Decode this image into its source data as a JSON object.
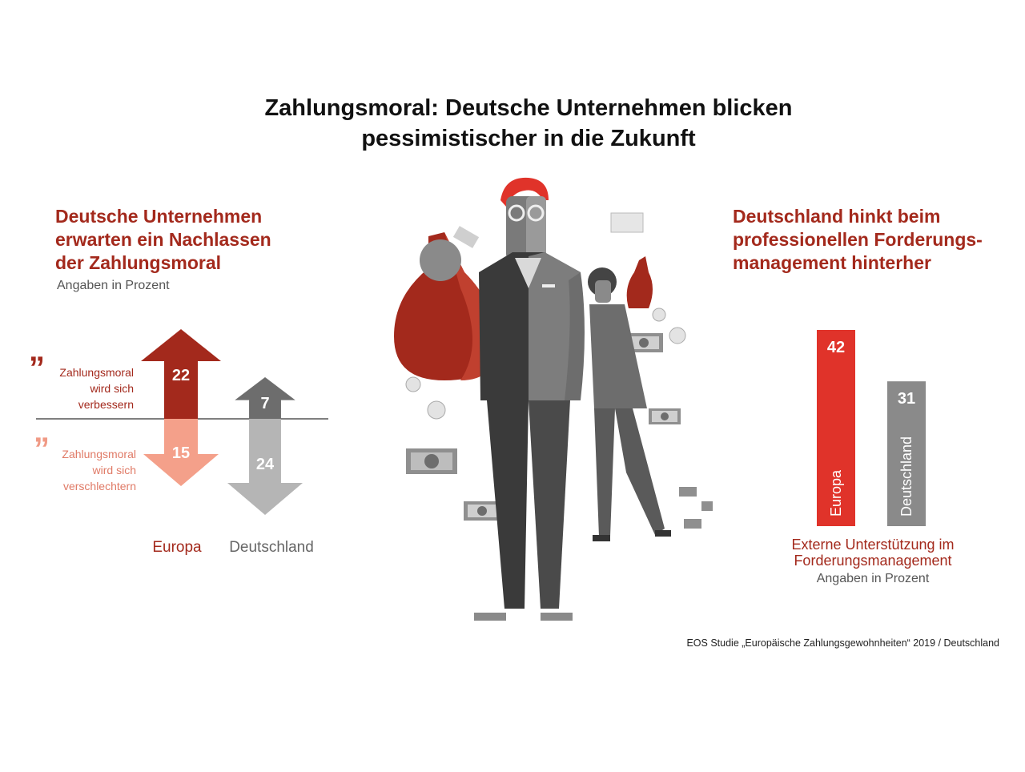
{
  "title_line1": "Zahlungsmoral: Deutsche Unternehmen blicken",
  "title_line2": "pessimistischer in die Zukunft",
  "left": {
    "heading_line1": "Deutsche Unternehmen",
    "heading_line2": "erwarten ein Nachlassen",
    "heading_line3": "der Zahlungsmoral",
    "unit": "Angaben in Prozent",
    "label_up_line1": "Zahlungsmoral",
    "label_up_line2": "wird sich",
    "label_up_line3": "verbessern",
    "label_down_line1": "Zahlungsmoral",
    "label_down_line2": "wird sich",
    "label_down_line3": "verschlechtern",
    "quote_glyph": "”",
    "quote_glyph_down": "”"
  },
  "right": {
    "heading_line1": "Deutschland hinkt beim",
    "heading_line2": "professionellen Forderungs-",
    "heading_line3": "management hinterher",
    "caption_line1": "Externe Unterstützung im",
    "caption_line2": "Forderungsmanagement",
    "unit": "Angaben in Prozent"
  },
  "source": "EOS Studie „Europäische Zahlungsgewohnheiten“  2019 / Deutschland",
  "colors": {
    "europa_up": "#a3291c",
    "europa_down": "#f4a08a",
    "deutschland_up": "#6d6d6d",
    "deutschland_down": "#b5b5b5",
    "bar_europa": "#e0332a",
    "bar_deutschland": "#8a8a8a"
  },
  "illustration": "businessman-with-money-bags-icon",
  "chart_data": [
    {
      "type": "bar",
      "title": "Deutsche Unternehmen erwarten ein Nachlassen der Zahlungsmoral",
      "categories": [
        "Europa",
        "Deutschland"
      ],
      "series": [
        {
          "name": "Zahlungsmoral wird sich verbessern",
          "values": [
            22,
            7
          ]
        },
        {
          "name": "Zahlungsmoral wird sich verschlechtern",
          "values": [
            15,
            24
          ]
        }
      ],
      "unit": "Angaben in Prozent"
    },
    {
      "type": "bar",
      "title": "Deutschland hinkt beim professionellen Forderungsmanagement hinterher",
      "categories": [
        "Europa",
        "Deutschland"
      ],
      "values": [
        42,
        31
      ],
      "xlabel": "Externe Unterstützung im Forderungsmanagement",
      "unit": "Angaben in Prozent"
    }
  ]
}
